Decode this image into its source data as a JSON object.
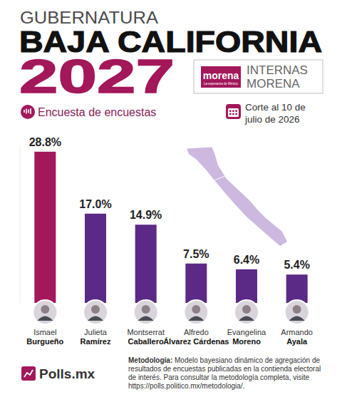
{
  "chart_data": {
    "type": "bar",
    "pretitle": "GUBERNATURA",
    "title": "BAJA CALIFORNIA",
    "subtitle": "2027",
    "badge_logo": "morena",
    "badge_tagline": "La esperanza de México",
    "badge_text": "INTERNAS MORENA",
    "annotations": [
      "Encuesta de encuestas",
      "Corte al 10 de julio de 2026"
    ],
    "categories": [
      "Ismael Burgueño",
      "Julieta Ramírez",
      "Montserrat Caballero",
      "Alfredo Álvarez Cárdenas",
      "Evangelina Moreno",
      "Armando Ayala"
    ],
    "values": [
      28.8,
      17.0,
      14.9,
      7.5,
      6.4,
      5.4
    ],
    "value_labels": [
      "28.8%",
      "17.0%",
      "14.9%",
      "7.5%",
      "6.4%",
      "5.4%"
    ],
    "colors": [
      "#a3175b",
      "#5a2a86",
      "#5a2a86",
      "#5a2a86",
      "#5a2a86",
      "#5a2a86"
    ],
    "ylim": [
      0,
      30
    ],
    "tick_labels": false,
    "grid": false,
    "data_labels": true,
    "source": "Polls.mx",
    "methodology_label": "Metodología:",
    "methodology": "Modelo bayesiano dinámico de agregación de resultados de encuestas publicadas en la contienda electoral de interés. Para consultar la metodología completa, visite https://polls.politico.mx/metodologia/."
  }
}
